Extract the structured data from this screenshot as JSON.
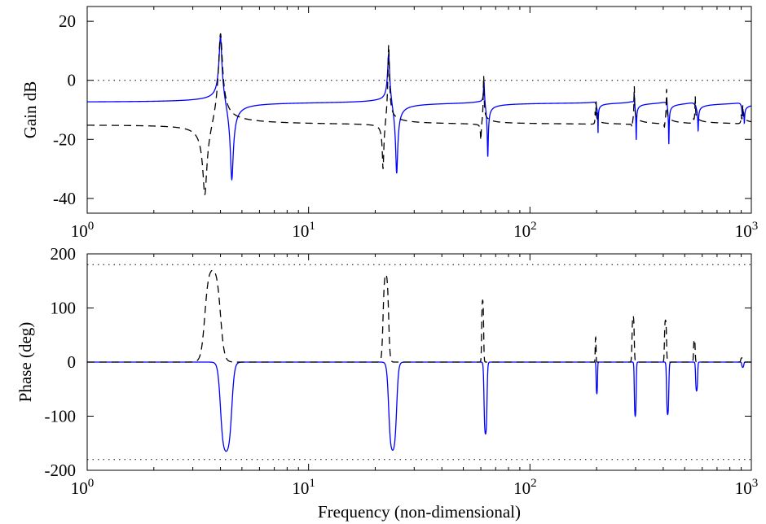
{
  "chart_data": [
    {
      "type": "line",
      "panel": "gain",
      "title": "",
      "xlabel": "",
      "ylabel": "Gain dB",
      "xscale": "log",
      "xlim": [
        1,
        1000
      ],
      "ylim": [
        -45,
        25
      ],
      "xtick_labels": [
        {
          "base": "10",
          "exp": "0",
          "value": 1
        },
        {
          "base": "10",
          "exp": "1",
          "value": 10
        },
        {
          "base": "10",
          "exp": "2",
          "value": 100
        },
        {
          "base": "10",
          "exp": "3",
          "value": 1000
        }
      ],
      "yticks": [
        20,
        0,
        -20,
        -40
      ],
      "ytick_labels": [
        "20",
        "0",
        "-20",
        "-40"
      ],
      "reference_lines": [
        0
      ],
      "grid": false,
      "legend": "none",
      "series": [
        {
          "color": "#0000ff",
          "style": "solid",
          "baseline_db": -7.5,
          "modes": [
            {
              "resonance": 4.0,
              "peak_db": 18,
              "antiresonance": 4.5,
              "dip_db": -36
            },
            {
              "resonance": 23.0,
              "peak_db": 12,
              "antiresonance": 25.0,
              "dip_db": -33
            },
            {
              "resonance": 62.0,
              "peak_db": 2,
              "antiresonance": 64.5,
              "dip_db": -26
            },
            {
              "resonance": 200.0,
              "peak_db": -8,
              "antiresonance": 203.0,
              "dip_db": -17
            },
            {
              "resonance": 296.0,
              "peak_db": -3,
              "antiresonance": 302.0,
              "dip_db": -20
            },
            {
              "resonance": 415.0,
              "peak_db": -4,
              "antiresonance": 424.0,
              "dip_db": -21
            },
            {
              "resonance": 560.0,
              "peak_db": -7,
              "antiresonance": 575.0,
              "dip_db": -16
            },
            {
              "resonance": 910.0,
              "peak_db": -11,
              "antiresonance": 930.0,
              "dip_db": -13
            }
          ]
        },
        {
          "color": "#000000",
          "style": "dashed",
          "baseline_db": -15,
          "modes": [
            {
              "antiresonance": 3.4,
              "dip_db": -42,
              "resonance": 4.0,
              "peak_db": 19
            },
            {
              "antiresonance": 21.7,
              "dip_db": -33,
              "resonance": 23.0,
              "peak_db": 14
            },
            {
              "antiresonance": 60.0,
              "dip_db": -22,
              "resonance": 61.8,
              "peak_db": 2
            },
            {
              "antiresonance": 197.0,
              "dip_db": -11,
              "resonance": 199.0,
              "peak_db": -7
            },
            {
              "antiresonance": 289.0,
              "dip_db": -17,
              "resonance": 296.0,
              "peak_db": -2
            },
            {
              "antiresonance": 405.0,
              "dip_db": -17,
              "resonance": 414.0,
              "peak_db": -3
            },
            {
              "antiresonance": 548.0,
              "dip_db": -14,
              "resonance": 558.0,
              "peak_db": -6
            },
            {
              "antiresonance": 900.0,
              "dip_db": -12,
              "resonance": 915.0,
              "peak_db": -9
            }
          ]
        }
      ]
    },
    {
      "type": "line",
      "panel": "phase",
      "title": "",
      "xlabel": "Frequency (non-dimensional)",
      "ylabel": "Phase (deg)",
      "xscale": "log",
      "xlim": [
        1,
        1000
      ],
      "ylim": [
        -200,
        200
      ],
      "xtick_labels": [
        {
          "base": "10",
          "exp": "0",
          "value": 1
        },
        {
          "base": "10",
          "exp": "1",
          "value": 10
        },
        {
          "base": "10",
          "exp": "2",
          "value": 100
        },
        {
          "base": "10",
          "exp": "3",
          "value": 1000
        }
      ],
      "yticks": [
        200,
        100,
        0,
        -100,
        -200
      ],
      "ytick_labels": [
        "200",
        "100",
        "0",
        "-100",
        "-200"
      ],
      "reference_lines": [
        180,
        -180
      ],
      "grid": false,
      "legend": "none",
      "series": [
        {
          "color": "#0000ff",
          "style": "solid",
          "pulses": [
            {
              "from": 4.0,
              "to": 4.5,
              "value": -170
            },
            {
              "from": 23.0,
              "to": 25.0,
              "value": -168
            },
            {
              "from": 62.0,
              "to": 64.0,
              "value": -137
            },
            {
              "from": 199.0,
              "to": 202.0,
              "value": -60
            },
            {
              "from": 296.0,
              "to": 302.0,
              "value": -103
            },
            {
              "from": 414.0,
              "to": 424.0,
              "value": -100
            },
            {
              "from": 560.0,
              "to": 572.0,
              "value": -55
            },
            {
              "from": 905.0,
              "to": 925.0,
              "value": -10
            }
          ]
        },
        {
          "color": "#000000",
          "style": "dashed",
          "pulses": [
            {
              "from": 3.4,
              "to": 4.0,
              "value": 175
            },
            {
              "from": 21.7,
              "to": 23.0,
              "value": 167
            },
            {
              "from": 60.5,
              "to": 61.8,
              "value": 118
            },
            {
              "from": 197.0,
              "to": 199.0,
              "value": 47
            },
            {
              "from": 289.0,
              "to": 296.0,
              "value": 88
            },
            {
              "from": 405.0,
              "to": 414.0,
              "value": 80
            },
            {
              "from": 548.0,
              "to": 558.0,
              "value": 43
            },
            {
              "from": 895.0,
              "to": 915.0,
              "value": 8
            }
          ]
        }
      ]
    }
  ]
}
